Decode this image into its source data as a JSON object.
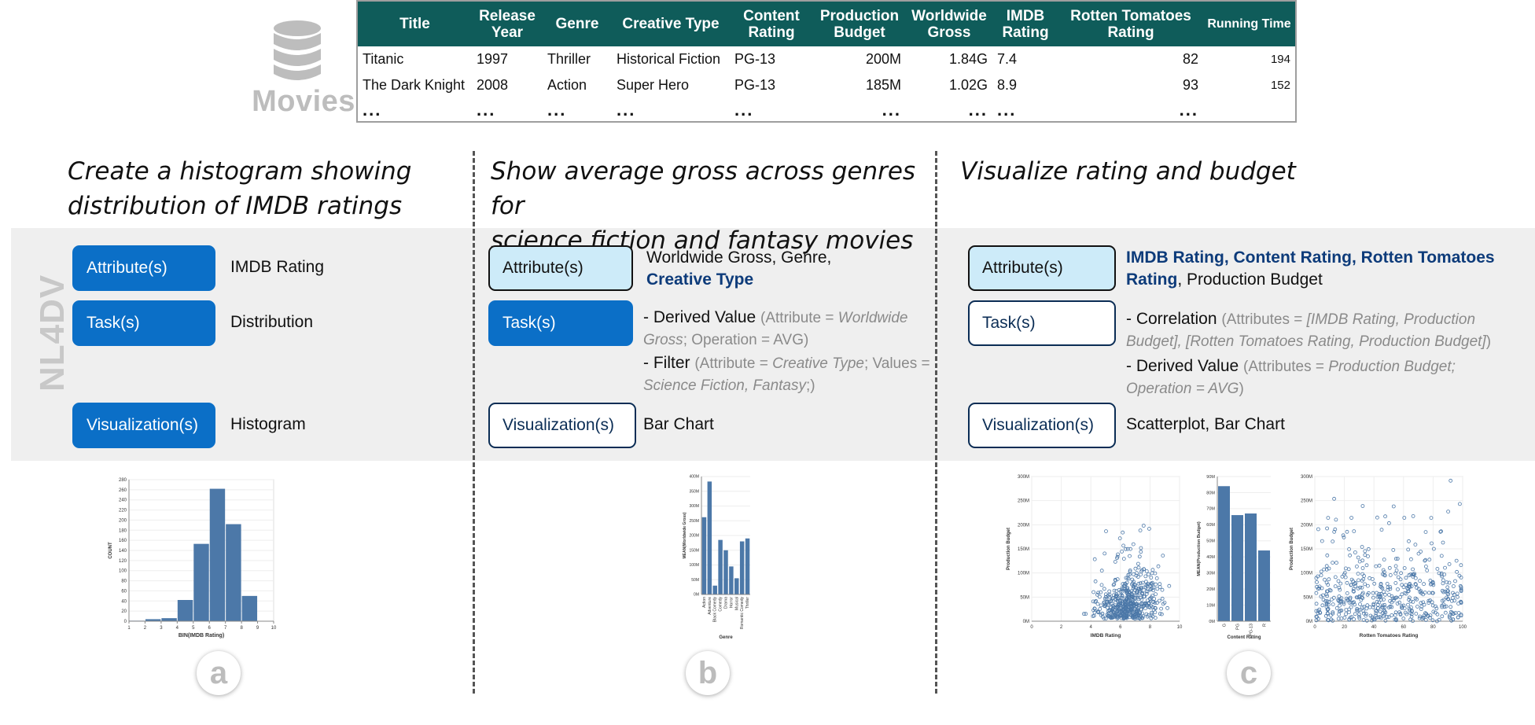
{
  "dataset": {
    "name": "Movies",
    "logo_icon": "database-icon"
  },
  "table": {
    "headers": [
      "Title",
      "Release Year",
      "Genre",
      "Creative Type",
      "Content Rating",
      "Production Budget",
      "Worldwide Gross",
      "IMDB Rating",
      "Rotten Tomatoes Rating",
      "Running Time"
    ],
    "rows": [
      [
        "Titanic",
        "1997",
        "Thriller",
        "Historical Fiction",
        "PG-13",
        "200M",
        "1.84G",
        "7.4",
        "82",
        "194"
      ],
      [
        "The Dark Knight",
        "2008",
        "Action",
        "Super Hero",
        "PG-13",
        "185M",
        "1.02G",
        "8.9",
        "93",
        "152"
      ],
      [
        "...",
        "...",
        "...",
        "...",
        "...",
        "...",
        "...",
        "...",
        "...",
        ""
      ]
    ]
  },
  "system_label": "NL4DV",
  "pill_labels": {
    "attributes": "Attribute(s)",
    "tasks": "Task(s)",
    "visualizations": "Visualization(s)"
  },
  "panels": [
    {
      "id": "a",
      "query_lines": [
        "Create a histogram showing",
        "distribution of IMDB ratings"
      ],
      "attributes": "IMDB Rating",
      "tasks": "Distribution",
      "visualizations": "Histogram"
    },
    {
      "id": "b",
      "query_lines": [
        "Show average gross across genres for",
        "science fiction and fantasy movies"
      ],
      "attributes_line1": "Worldwide Gross, Genre,",
      "attributes_line2": "Creative Type",
      "task1": {
        "name": "- Derived Value",
        "open": "(Attribute = ",
        "attr": "Worldwide Gross",
        "rest": "; Operation = AVG)"
      },
      "task2": {
        "name": "- Filter",
        "open": "(Attribute = ",
        "attr": "Creative Type",
        "mid": "; Values = ",
        "values": "Science Fiction, Fantasy",
        "close": ";)"
      },
      "visualizations": "Bar Chart"
    },
    {
      "id": "c",
      "query_lines": [
        "Visualize rating and budget"
      ],
      "attributes_hl_1": "IMDB Rating, Content Rating, Rotten Tomatoes",
      "attributes_hl_2": "Rating",
      "attributes_rest": ", Production Budget",
      "task1": {
        "name": "- Correlation",
        "open": "(Attributes = ",
        "attr": "[IMDB Rating, Production Budget], [Rotten Tomatoes Rating, Production Budget]",
        "close": ")"
      },
      "task2": {
        "name": "- Derived Value",
        "open": "(Attributes = ",
        "attr": "Production Budget; Operation = AVG",
        "close": ")"
      },
      "visualizations": "Scatterplot, Bar Chart"
    }
  ],
  "colors": {
    "accent": "#0b6fc7",
    "header_bg": "#0f5c5a",
    "mark": "#4c78a8",
    "highlight": "#0d3b7a"
  },
  "chart_data": [
    {
      "type": "bar",
      "id": "histogram-imdb",
      "xlabel": "BIN(IMDB Rating)",
      "ylabel": "COUNT",
      "bins": [
        [
          1,
          2
        ],
        [
          2,
          3
        ],
        [
          3,
          4
        ],
        [
          4,
          5
        ],
        [
          5,
          6
        ],
        [
          6,
          7
        ],
        [
          7,
          8
        ],
        [
          8,
          9
        ]
      ],
      "values": [
        1,
        4,
        6,
        42,
        153,
        262,
        192,
        50
      ],
      "xticks": [
        1,
        2,
        3,
        4,
        5,
        6,
        7,
        8,
        9,
        10
      ],
      "yticks": [
        0,
        20,
        40,
        60,
        80,
        100,
        120,
        140,
        160,
        180,
        200,
        220,
        240,
        260,
        280
      ],
      "ylim": [
        0,
        280
      ]
    },
    {
      "type": "bar",
      "id": "bar-genre-gross",
      "xlabel": "Genre",
      "ylabel": "MEAN(Worldwide Gross)",
      "categories": [
        "Action",
        "Adventure",
        "Black Comedy",
        "Comedy",
        "Drama",
        "Horror",
        "Musical",
        "Romantic Comedy",
        "Thriller"
      ],
      "values": [
        262,
        383,
        30,
        185,
        150,
        95,
        55,
        180,
        190
      ],
      "value_unit": "M",
      "yticks": [
        "0M",
        "50M",
        "100M",
        "150M",
        "200M",
        "250M",
        "300M",
        "350M",
        "400M"
      ],
      "ylim": [
        0,
        400
      ]
    },
    {
      "type": "scatter",
      "id": "scatter-imdb-budget",
      "xlabel": "IMDB Rating",
      "ylabel": "Production Budget",
      "xlim": [
        0,
        10
      ],
      "ylim": [
        0,
        300
      ],
      "xticks": [
        "0",
        "2",
        "4",
        "6",
        "8",
        "10"
      ],
      "yticks": [
        "0M",
        "50M",
        "100M",
        "150M",
        "200M",
        "250M",
        "300M"
      ]
    },
    {
      "type": "bar",
      "id": "bar-content-budget",
      "xlabel": "Content Rating",
      "ylabel": "MEAN(Production Budget)",
      "categories": [
        "G",
        "PG",
        "PG-13",
        "R"
      ],
      "values": [
        84,
        66,
        67,
        44
      ],
      "ylim": [
        0,
        90
      ],
      "yticks": [
        "0M",
        "10M",
        "20M",
        "30M",
        "40M",
        "50M",
        "60M",
        "70M",
        "80M",
        "90M"
      ]
    },
    {
      "type": "scatter",
      "id": "scatter-rt-budget",
      "xlabel": "Rotten Tomatoes Rating",
      "ylabel": "Production Budget",
      "xlim": [
        0,
        100
      ],
      "ylim": [
        0,
        300
      ],
      "xticks": [
        "0",
        "20",
        "40",
        "60",
        "80",
        "100"
      ],
      "yticks": [
        "0M",
        "50M",
        "100M",
        "150M",
        "200M",
        "250M",
        "300M"
      ]
    }
  ]
}
